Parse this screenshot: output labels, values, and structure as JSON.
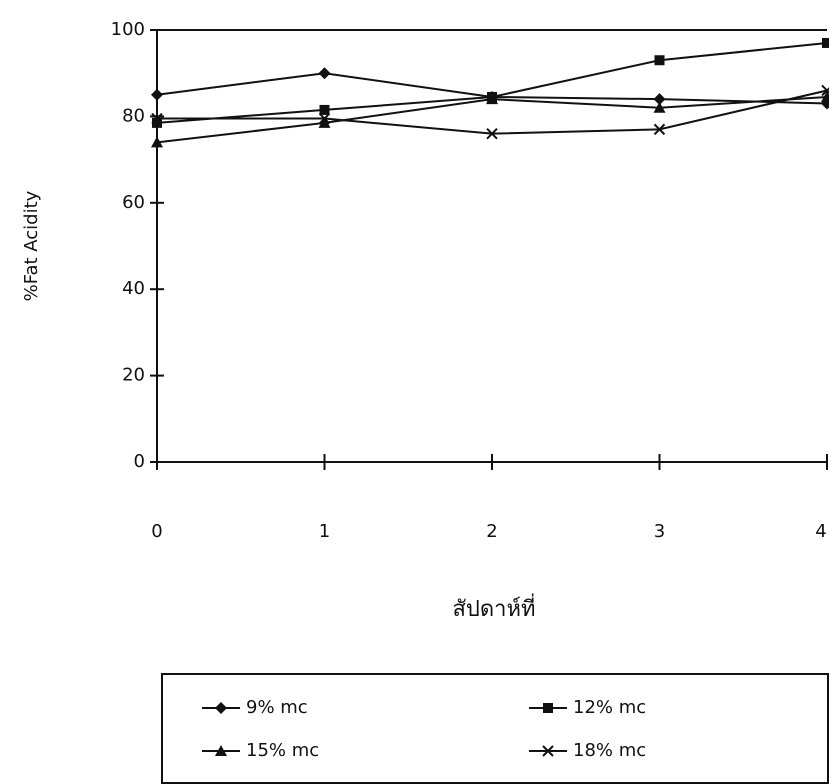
{
  "chart_data": {
    "type": "line",
    "x_label": "สัปดาห์ที่",
    "y_label": "%Fat Acidity",
    "x": [
      0,
      1,
      2,
      3,
      4
    ],
    "xlim": [
      0,
      4
    ],
    "xticks": [
      0,
      1,
      2,
      3,
      4
    ],
    "ylim": [
      0,
      100
    ],
    "yticks": [
      0,
      20,
      40,
      60,
      80,
      100
    ],
    "legend": "bottom",
    "series": [
      {
        "name": "9% mc",
        "color": "#111111",
        "marker": "diamond",
        "values": [
          85,
          90,
          84.5,
          84,
          83
        ]
      },
      {
        "name": "12% mc",
        "color": "#111111",
        "marker": "square",
        "values": [
          78.5,
          81.5,
          84.5,
          93,
          97
        ]
      },
      {
        "name": "15% mc",
        "color": "#111111",
        "marker": "triangle",
        "values": [
          74,
          78.5,
          84,
          82,
          84.5
        ]
      },
      {
        "name": "18% mc",
        "color": "#111111",
        "marker": "x",
        "values": [
          79.5,
          79.5,
          76,
          77,
          86
        ]
      }
    ]
  }
}
